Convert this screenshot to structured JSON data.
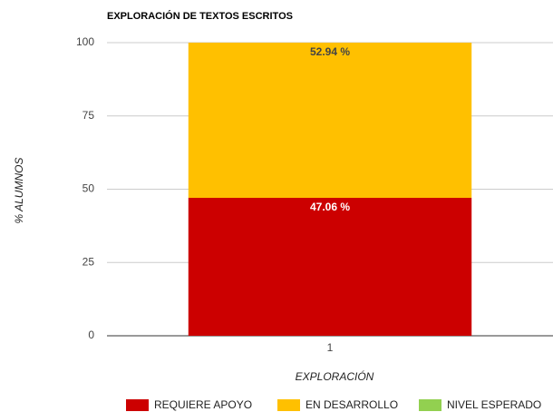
{
  "chart_data": {
    "type": "stacked_bar",
    "title": "EXPLORACIÓN DE TEXTOS ESCRITOS",
    "x_label": "EXPLORACIÓN",
    "y_label": "% ALUMNOS",
    "categories": [
      "1"
    ],
    "series": [
      {
        "name": "REQUIERE APOYO",
        "color": "#cc0000",
        "values": [
          47.06
        ],
        "value_labels": [
          "47.06 %"
        ],
        "label_color": "#ffffff"
      },
      {
        "name": "EN DESARROLLO",
        "color": "#ffc000",
        "values": [
          52.94
        ],
        "value_labels": [
          "52.94 %"
        ],
        "label_color": "#444444"
      },
      {
        "name": "NIVEL ESPERADO",
        "color": "#92d050",
        "values": [
          0
        ]
      }
    ],
    "ylim": [
      0,
      100
    ],
    "yticks": [
      0,
      25,
      50,
      75,
      100
    ],
    "grid": true,
    "legend": "bottom"
  }
}
